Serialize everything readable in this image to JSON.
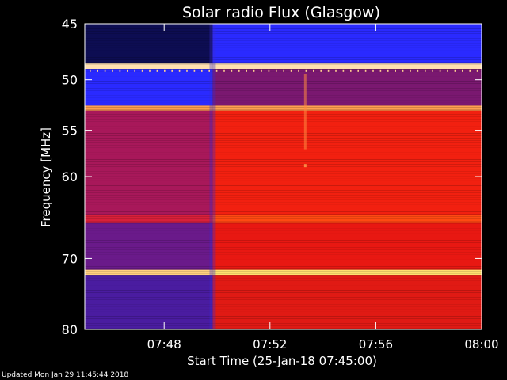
{
  "chart_data": {
    "type": "heatmap",
    "title": "Solar radio Flux (Glasgow)",
    "xlabel": "Start Time (25-Jan-18 07:45:00)",
    "ylabel": "Frequency [MHz]",
    "x_ticks": [
      "07:48",
      "07:52",
      "07:56",
      "08:00"
    ],
    "y_ticks": [
      45,
      50,
      55,
      60,
      70,
      80
    ],
    "ylim": [
      45,
      80
    ],
    "xlim": [
      "07:45:00",
      "08:00:00"
    ],
    "y_scale": "log",
    "colormap": [
      "#0a0a3c",
      "#2020ff",
      "#8a1a8a",
      "#e01010",
      "#ff3a10",
      "#ff8c20",
      "#ffe680"
    ],
    "time_columns": {
      "step_change_time": "07:49:50",
      "burst_time": "07:53:20"
    },
    "bands": [
      {
        "f_low": 45.0,
        "f_high": 48.5,
        "before": "#0d0d52",
        "after": "#2a2aff"
      },
      {
        "f_low": 48.5,
        "f_high": 49.0,
        "before": "#ffe0b0",
        "after": "#ffe0b0"
      },
      {
        "f_low": 49.0,
        "f_high": 52.5,
        "before": "#2a2aff",
        "after": "#7a1870"
      },
      {
        "f_low": 52.5,
        "f_high": 53.0,
        "before": "#ffa050",
        "after": "#ffa050"
      },
      {
        "f_low": 53.0,
        "f_high": 64.5,
        "before": "#a8185a",
        "after": "#f22010"
      },
      {
        "f_low": 64.5,
        "f_high": 65.5,
        "before": "#d8203a",
        "after": "#ff4a12"
      },
      {
        "f_low": 65.5,
        "f_high": 71.5,
        "before": "#6a1a8a",
        "after": "#e81812"
      },
      {
        "f_low": 71.5,
        "f_high": 72.2,
        "before": "#ffd080",
        "after": "#ffe070"
      },
      {
        "f_low": 72.2,
        "f_high": 80.0,
        "before": "#4a1ca0",
        "after": "#e01a14"
      }
    ]
  },
  "footer": {
    "updated": "Updated Mon Jan 29 11:45:44 2018"
  }
}
